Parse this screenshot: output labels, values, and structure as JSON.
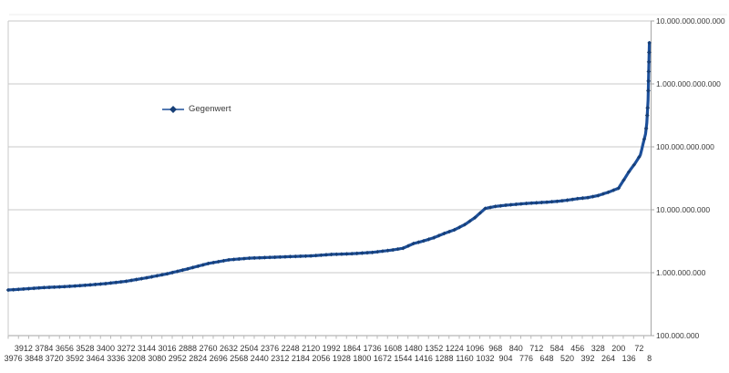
{
  "chart": {
    "colors": {
      "series_line": "#1c4f9a",
      "series_marker": "#173f77",
      "gridline": "#c9c9c9",
      "axis_line": "#a6a6a6",
      "tick": "#b8b8b8",
      "chart_edge": "#ededed",
      "text": "#3a3a3a"
    }
  },
  "chart_data": {
    "type": "line",
    "title": "",
    "legend_entries": [
      "Gegenwert"
    ],
    "legend_position": "upper-left-of-center",
    "legend_marker": "diamond",
    "grid": "horizontal",
    "y_axis": {
      "side": "right",
      "scale": "log10",
      "ylim": [
        100000000,
        10000000000000
      ],
      "tick_labels": [
        "10.000.000.000.000",
        "1.000.000.000.000",
        "100.000.000.000",
        "10.000.000.000",
        "1.000.000.000",
        "100.000.000"
      ]
    },
    "x_axis": {
      "direction": "descending",
      "category_step": 8,
      "first_point": 4008,
      "last_point": 8,
      "tick_label_rows": {
        "row1": [
          "3912",
          "3784",
          "3656",
          "3528",
          "3400",
          "3272",
          "3144",
          "3016",
          "2888",
          "2760",
          "2632",
          "2504",
          "2376",
          "2248",
          "2120",
          "1992",
          "1864",
          "1736",
          "1608",
          "1480",
          "1352",
          "1224",
          "1096",
          "968",
          "840",
          "712",
          "584",
          "456",
          "328",
          "200",
          "72"
        ],
        "row2": [
          "3976",
          "3848",
          "3720",
          "3592",
          "3464",
          "3336",
          "3208",
          "3080",
          "2952",
          "2824",
          "2696",
          "2568",
          "2440",
          "2312",
          "2184",
          "2056",
          "1928",
          "1800",
          "1672",
          "1544",
          "1416",
          "1288",
          "1160",
          "1032",
          "904",
          "776",
          "648",
          "520",
          "392",
          "264",
          "136",
          "8"
        ]
      }
    },
    "series": [
      {
        "name": "Gegenwert",
        "points": [
          [
            4008,
            530000000
          ],
          [
            3912,
            550000000
          ],
          [
            3784,
            580000000
          ],
          [
            3656,
            600000000
          ],
          [
            3528,
            630000000
          ],
          [
            3400,
            670000000
          ],
          [
            3272,
            730000000
          ],
          [
            3144,
            830000000
          ],
          [
            3016,
            960000000
          ],
          [
            2888,
            1150000000
          ],
          [
            2760,
            1400000000
          ],
          [
            2632,
            1600000000
          ],
          [
            2504,
            1700000000
          ],
          [
            2376,
            1750000000
          ],
          [
            2248,
            1800000000
          ],
          [
            2120,
            1850000000
          ],
          [
            1992,
            1950000000
          ],
          [
            1864,
            2000000000
          ],
          [
            1736,
            2100000000
          ],
          [
            1608,
            2300000000
          ],
          [
            1544,
            2450000000
          ],
          [
            1480,
            2900000000
          ],
          [
            1416,
            3200000000
          ],
          [
            1352,
            3600000000
          ],
          [
            1288,
            4200000000
          ],
          [
            1224,
            4800000000
          ],
          [
            1160,
            5800000000
          ],
          [
            1096,
            7500000000
          ],
          [
            1032,
            10500000000
          ],
          [
            968,
            11300000000
          ],
          [
            904,
            11800000000
          ],
          [
            840,
            12200000000
          ],
          [
            776,
            12600000000
          ],
          [
            712,
            12900000000
          ],
          [
            648,
            13200000000
          ],
          [
            584,
            13600000000
          ],
          [
            520,
            14200000000
          ],
          [
            456,
            15000000000
          ],
          [
            392,
            15600000000
          ],
          [
            328,
            16800000000
          ],
          [
            264,
            19000000000
          ],
          [
            200,
            22000000000
          ],
          [
            136,
            40000000000
          ],
          [
            96,
            55000000000
          ],
          [
            64,
            74000000000
          ],
          [
            48,
            110000000000
          ],
          [
            32,
            160000000000
          ],
          [
            24,
            240000000000
          ],
          [
            16,
            550000000000
          ],
          [
            8,
            4500000000000
          ]
        ]
      }
    ]
  }
}
